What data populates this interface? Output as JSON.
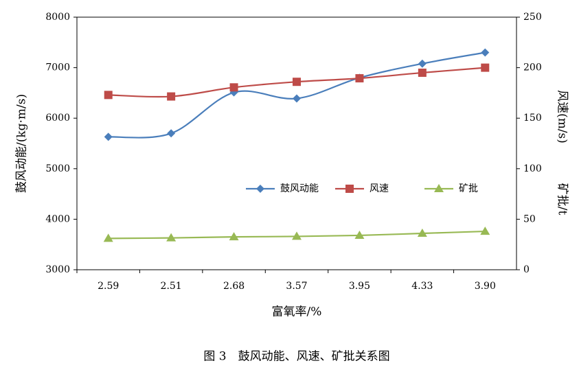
{
  "chart_data": {
    "type": "line",
    "categories": [
      "2.59",
      "2.51",
      "2.68",
      "3.57",
      "3.95",
      "4.33",
      "3.90"
    ],
    "xlabel": "富氧率/%",
    "ylabel": "鼓风动能/(kg·m/s)",
    "y2labels": [
      "风速(m/s)",
      "矿批/t"
    ],
    "caption": "图 3　鼓风动能、风速、矿批关系图",
    "ylim": [
      3000,
      8000
    ],
    "yticks": [
      3000,
      4000,
      5000,
      6000,
      7000,
      8000
    ],
    "y2lim": [
      0,
      250
    ],
    "y2ticks": [
      0,
      50,
      100,
      150,
      200,
      250
    ],
    "series": [
      {
        "name": "鼓风动能",
        "color": "#4a7ebb",
        "marker": "diamond",
        "values": [
          5630,
          5700,
          6510,
          6390,
          6800,
          7080,
          7300
        ]
      },
      {
        "name": "风速",
        "color": "#be4b48",
        "marker": "square",
        "axis": "y2",
        "values": [
          173,
          171.5,
          180.5,
          186,
          189.5,
          195,
          200
        ]
      },
      {
        "name": "矿批",
        "color": "#98b954",
        "marker": "triangle",
        "axis": "y2",
        "values": [
          31,
          31.5,
          32.5,
          33,
          34,
          36,
          38
        ]
      }
    ]
  }
}
